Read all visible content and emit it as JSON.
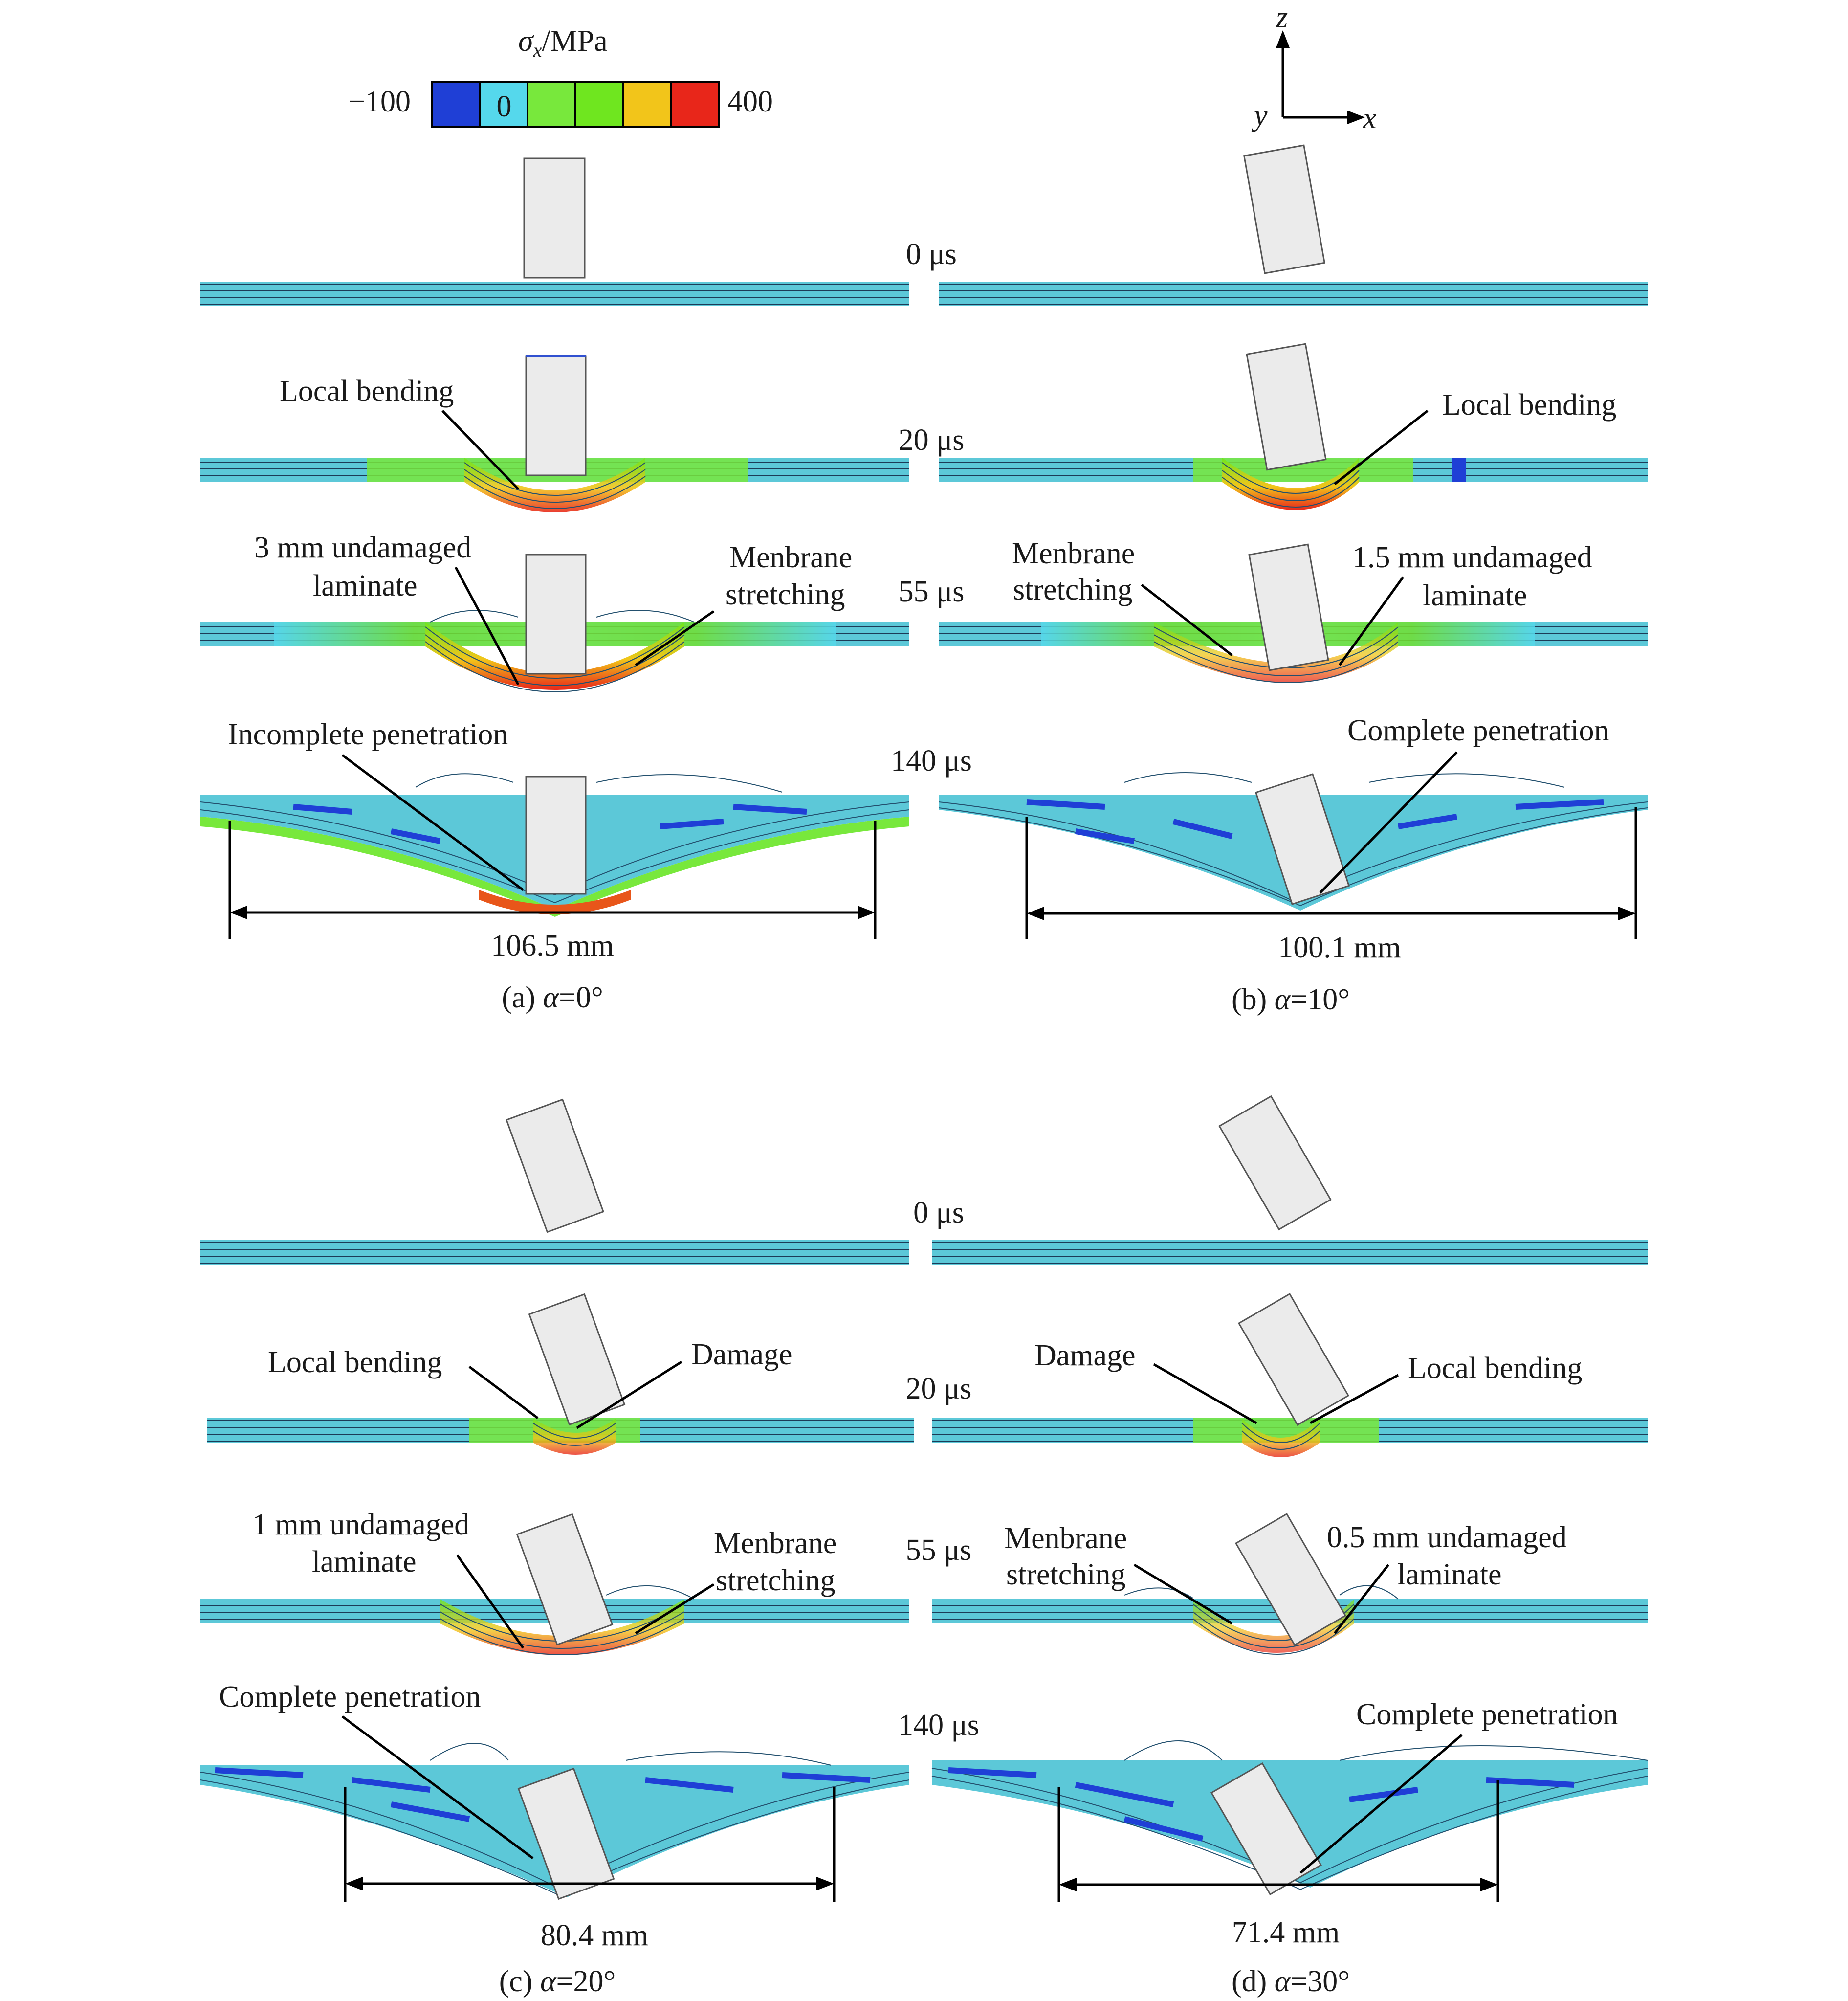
{
  "colorbar": {
    "title_symbol": "σ",
    "title_subscript": "x",
    "title_unit": "/MPa",
    "min_label": "−100",
    "max_label": "400",
    "zero_label": "0",
    "colors": [
      "#1f3fd6",
      "#55d8ec",
      "#78e83c",
      "#6fe61f",
      "#f2c51a",
      "#e8261a"
    ]
  },
  "axes": {
    "z": "z",
    "y": "y",
    "x": "x"
  },
  "panels": [
    {
      "caption_prefix": "(a) ",
      "alpha": "α",
      "caption_value": "=0°",
      "dimension": "106.5 mm",
      "labels": {
        "t20": "Local bending",
        "t55a": [
          "3 mm undamaged",
          "laminate"
        ],
        "t55b": [
          "Menbrane",
          "stretching"
        ],
        "t140": "Incomplete penetration"
      }
    },
    {
      "caption_prefix": "(b) ",
      "alpha": "α",
      "caption_value": "=10°",
      "dimension": "100.1 mm",
      "labels": {
        "t20": "Local bending",
        "t55a": [
          "Menbrane",
          "stretching"
        ],
        "t55b": [
          "1.5 mm undamaged",
          "laminate"
        ],
        "t140": "Complete penetration"
      }
    },
    {
      "caption_prefix": "(c) ",
      "alpha": "α",
      "caption_value": "=20°",
      "dimension": "80.4 mm",
      "labels": {
        "t20a": "Local bending",
        "t20b": "Damage",
        "t55a": [
          "1 mm undamaged",
          "laminate"
        ],
        "t55b": [
          "Menbrane",
          "stretching"
        ],
        "t140": "Complete penetration"
      }
    },
    {
      "caption_prefix": "(d) ",
      "alpha": "α",
      "caption_value": "=30°",
      "dimension": "71.4 mm",
      "labels": {
        "t20a": "Damage",
        "t20b": "Local bending",
        "t55a": [
          "Menbrane",
          "stretching"
        ],
        "t55b": [
          "0.5 mm undamaged",
          "laminate"
        ],
        "t140": "Complete penetration"
      }
    }
  ],
  "times": {
    "top": [
      "0 μs",
      "20 μs",
      "55 μs",
      "140 μs"
    ],
    "bottom": [
      "0 μs",
      "20 μs",
      "55 μs",
      "140 μs"
    ]
  }
}
